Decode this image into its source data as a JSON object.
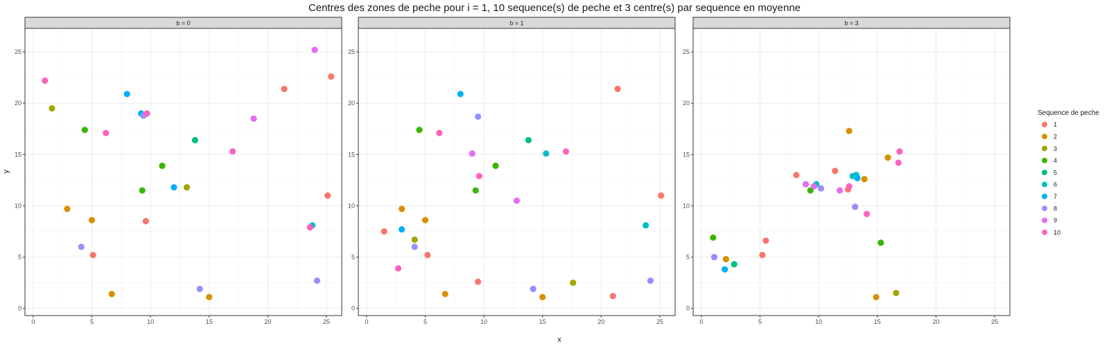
{
  "chart_data": {
    "type": "scatter",
    "title": "Centres des zones de peche pour i = 1, 10 sequence(s) de peche et 3 centre(s) par sequence en moyenne",
    "xlabel": "x",
    "ylabel": "y",
    "xlim": [
      -0.7,
      26.3
    ],
    "ylim": [
      -0.7,
      27.3
    ],
    "xticks": [
      0,
      5,
      10,
      15,
      20,
      25
    ],
    "yticks": [
      0,
      5,
      10,
      15,
      20,
      25
    ],
    "grid": true,
    "legend": {
      "title": "Sequence de peche",
      "position": "right",
      "entries": [
        "1",
        "2",
        "3",
        "4",
        "5",
        "6",
        "7",
        "8",
        "9",
        "10"
      ]
    },
    "colors": {
      "1": "#F8766D",
      "2": "#D89000",
      "3": "#A3A500",
      "4": "#39B600",
      "5": "#00BF7D",
      "6": "#00BFC4",
      "7": "#00B0F6",
      "8": "#9590FF",
      "9": "#E76BF3",
      "10": "#FF62BC"
    },
    "panels": [
      {
        "strip": "b = 0",
        "points": [
          {
            "x": 21.4,
            "y": 21.4,
            "seq": "1"
          },
          {
            "x": 25.4,
            "y": 22.6,
            "seq": "1"
          },
          {
            "x": 25.1,
            "y": 11.0,
            "seq": "1"
          },
          {
            "x": 9.6,
            "y": 8.5,
            "seq": "1"
          },
          {
            "x": 5.1,
            "y": 5.2,
            "seq": "1"
          },
          {
            "x": 2.9,
            "y": 9.7,
            "seq": "2"
          },
          {
            "x": 5.0,
            "y": 8.6,
            "seq": "2"
          },
          {
            "x": 6.7,
            "y": 1.4,
            "seq": "2"
          },
          {
            "x": 15.0,
            "y": 1.1,
            "seq": "2"
          },
          {
            "x": 1.6,
            "y": 19.5,
            "seq": "3"
          },
          {
            "x": 13.1,
            "y": 11.8,
            "seq": "3"
          },
          {
            "x": 4.4,
            "y": 17.4,
            "seq": "4"
          },
          {
            "x": 11.0,
            "y": 13.9,
            "seq": "4"
          },
          {
            "x": 9.3,
            "y": 11.5,
            "seq": "4"
          },
          {
            "x": 13.8,
            "y": 16.4,
            "seq": "5"
          },
          {
            "x": 23.8,
            "y": 8.1,
            "seq": "6"
          },
          {
            "x": 8.0,
            "y": 20.9,
            "seq": "7"
          },
          {
            "x": 9.2,
            "y": 19.0,
            "seq": "7"
          },
          {
            "x": 12.0,
            "y": 11.8,
            "seq": "7"
          },
          {
            "x": 9.4,
            "y": 18.8,
            "seq": "8"
          },
          {
            "x": 4.1,
            "y": 6.0,
            "seq": "8"
          },
          {
            "x": 14.2,
            "y": 1.9,
            "seq": "8"
          },
          {
            "x": 24.2,
            "y": 2.7,
            "seq": "8"
          },
          {
            "x": 24.0,
            "y": 25.2,
            "seq": "9"
          },
          {
            "x": 18.8,
            "y": 18.5,
            "seq": "9"
          },
          {
            "x": 1.0,
            "y": 22.2,
            "seq": "10"
          },
          {
            "x": 6.2,
            "y": 17.1,
            "seq": "10"
          },
          {
            "x": 9.7,
            "y": 19.0,
            "seq": "10"
          },
          {
            "x": 17.0,
            "y": 15.3,
            "seq": "10"
          },
          {
            "x": 23.6,
            "y": 7.9,
            "seq": "10"
          }
        ]
      },
      {
        "strip": "b = 1",
        "points": [
          {
            "x": 21.4,
            "y": 21.4,
            "seq": "1"
          },
          {
            "x": 25.1,
            "y": 11.0,
            "seq": "1"
          },
          {
            "x": 1.5,
            "y": 7.5,
            "seq": "1"
          },
          {
            "x": 5.2,
            "y": 5.2,
            "seq": "1"
          },
          {
            "x": 9.5,
            "y": 2.6,
            "seq": "1"
          },
          {
            "x": 21.0,
            "y": 1.2,
            "seq": "1"
          },
          {
            "x": 3.0,
            "y": 9.7,
            "seq": "2"
          },
          {
            "x": 5.0,
            "y": 8.6,
            "seq": "2"
          },
          {
            "x": 6.7,
            "y": 1.4,
            "seq": "2"
          },
          {
            "x": 15.0,
            "y": 1.1,
            "seq": "2"
          },
          {
            "x": 4.1,
            "y": 6.7,
            "seq": "3"
          },
          {
            "x": 17.6,
            "y": 2.5,
            "seq": "3"
          },
          {
            "x": 4.5,
            "y": 17.4,
            "seq": "4"
          },
          {
            "x": 11.0,
            "y": 13.9,
            "seq": "4"
          },
          {
            "x": 9.3,
            "y": 11.5,
            "seq": "4"
          },
          {
            "x": 13.8,
            "y": 16.4,
            "seq": "5"
          },
          {
            "x": 15.3,
            "y": 15.1,
            "seq": "6"
          },
          {
            "x": 23.8,
            "y": 8.1,
            "seq": "6"
          },
          {
            "x": 8.0,
            "y": 20.9,
            "seq": "7"
          },
          {
            "x": 3.0,
            "y": 7.7,
            "seq": "7"
          },
          {
            "x": 9.5,
            "y": 18.7,
            "seq": "8"
          },
          {
            "x": 4.1,
            "y": 6.0,
            "seq": "8"
          },
          {
            "x": 14.2,
            "y": 1.9,
            "seq": "8"
          },
          {
            "x": 24.2,
            "y": 2.7,
            "seq": "8"
          },
          {
            "x": 9.0,
            "y": 15.1,
            "seq": "9"
          },
          {
            "x": 12.8,
            "y": 10.5,
            "seq": "9"
          },
          {
            "x": 6.2,
            "y": 17.1,
            "seq": "10"
          },
          {
            "x": 9.6,
            "y": 12.9,
            "seq": "10"
          },
          {
            "x": 17.0,
            "y": 15.3,
            "seq": "10"
          },
          {
            "x": 2.7,
            "y": 3.9,
            "seq": "10"
          }
        ]
      },
      {
        "strip": "b = 3",
        "points": [
          {
            "x": 8.1,
            "y": 13.0,
            "seq": "1"
          },
          {
            "x": 11.4,
            "y": 13.4,
            "seq": "1"
          },
          {
            "x": 12.5,
            "y": 11.6,
            "seq": "1"
          },
          {
            "x": 5.5,
            "y": 6.6,
            "seq": "1"
          },
          {
            "x": 5.2,
            "y": 5.2,
            "seq": "1"
          },
          {
            "x": 12.6,
            "y": 17.3,
            "seq": "2"
          },
          {
            "x": 15.9,
            "y": 14.7,
            "seq": "2"
          },
          {
            "x": 13.9,
            "y": 12.6,
            "seq": "2"
          },
          {
            "x": 2.1,
            "y": 4.8,
            "seq": "2"
          },
          {
            "x": 14.9,
            "y": 1.1,
            "seq": "2"
          },
          {
            "x": 16.6,
            "y": 1.5,
            "seq": "3"
          },
          {
            "x": 9.3,
            "y": 11.5,
            "seq": "4"
          },
          {
            "x": 1.0,
            "y": 6.9,
            "seq": "4"
          },
          {
            "x": 15.3,
            "y": 6.4,
            "seq": "4"
          },
          {
            "x": 2.8,
            "y": 4.3,
            "seq": "5"
          },
          {
            "x": 12.9,
            "y": 12.9,
            "seq": "6"
          },
          {
            "x": 13.2,
            "y": 13.0,
            "seq": "6"
          },
          {
            "x": 9.8,
            "y": 12.1,
            "seq": "6"
          },
          {
            "x": 2.0,
            "y": 3.8,
            "seq": "7"
          },
          {
            "x": 13.3,
            "y": 12.7,
            "seq": "7"
          },
          {
            "x": 10.2,
            "y": 11.7,
            "seq": "8"
          },
          {
            "x": 13.1,
            "y": 9.9,
            "seq": "8"
          },
          {
            "x": 1.1,
            "y": 5.0,
            "seq": "8"
          },
          {
            "x": 8.9,
            "y": 12.1,
            "seq": "9"
          },
          {
            "x": 11.8,
            "y": 11.5,
            "seq": "9"
          },
          {
            "x": 9.6,
            "y": 11.9,
            "seq": "9"
          },
          {
            "x": 12.6,
            "y": 11.9,
            "seq": "10"
          },
          {
            "x": 14.1,
            "y": 9.2,
            "seq": "10"
          },
          {
            "x": 16.9,
            "y": 15.3,
            "seq": "10"
          },
          {
            "x": 16.8,
            "y": 14.2,
            "seq": "10"
          }
        ]
      }
    ]
  }
}
